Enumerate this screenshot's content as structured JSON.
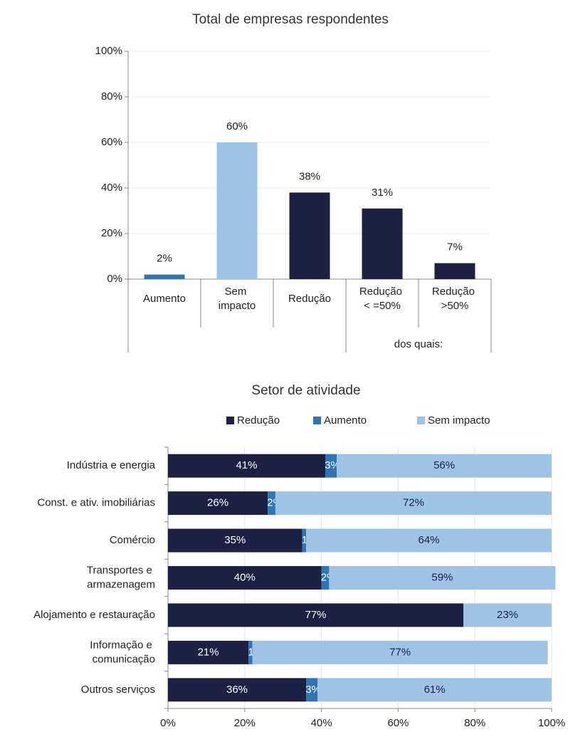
{
  "chart_data": [
    {
      "type": "bar",
      "title": "Total de empresas respondentes",
      "categories": [
        "Aumento",
        "Sem\nimpacto",
        "Redução",
        "Redução\n< =50%",
        "Redução\n>50%"
      ],
      "values": [
        2,
        60,
        38,
        31,
        7
      ],
      "value_labels": [
        "2%",
        "60%",
        "38%",
        "31%",
        "7%"
      ],
      "colors": [
        "#2e75b6",
        "#9dc3e6",
        "#1c2143",
        "#1c2143",
        "#1c2143"
      ],
      "group_label": "dos quais:",
      "ylim": [
        0,
        100
      ],
      "yticks": [
        {
          "value": 0,
          "label": "0%"
        },
        {
          "value": 20,
          "label": "20%"
        },
        {
          "value": 40,
          "label": "40%"
        },
        {
          "value": 60,
          "label": "60%"
        },
        {
          "value": 80,
          "label": "80%"
        },
        {
          "value": 100,
          "label": "100%"
        }
      ],
      "grid": true
    },
    {
      "type": "stacked-hbar",
      "title": "Setor de atividade",
      "categories": [
        "Indústria e energia",
        "Const. e ativ. imobiliárias",
        "Comércio",
        "Transportes e\narmazenagem",
        "Alojamento e restauração",
        "Informação e\ncomunicação",
        "Outros serviços"
      ],
      "series": [
        {
          "name": "Redução",
          "color": "#1c2143",
          "values": [
            41,
            26,
            35,
            40,
            77,
            21,
            36
          ],
          "value_labels": [
            "41%",
            "26%",
            "35%",
            "40%",
            "77%",
            "21%",
            "36%"
          ]
        },
        {
          "name": "Aumento",
          "color": "#2e75b6",
          "values": [
            3,
            2,
            1,
            2,
            0,
            1,
            3
          ],
          "value_labels": [
            "3%",
            "2%",
            "1%",
            "2%",
            null,
            "1%",
            "3%"
          ]
        },
        {
          "name": "Sem impacto",
          "color": "#9dc3e6",
          "values": [
            56,
            72,
            64,
            59,
            23,
            77,
            61
          ],
          "value_labels": [
            "56%",
            "72%",
            "64%",
            "59%",
            "23%",
            "77%",
            "61%"
          ]
        }
      ],
      "xlim": [
        0,
        100
      ],
      "xticks": [
        {
          "value": 0,
          "label": "0%"
        },
        {
          "value": 20,
          "label": "20%"
        },
        {
          "value": 40,
          "label": "40%"
        },
        {
          "value": 60,
          "label": "60%"
        },
        {
          "value": 80,
          "label": "80%"
        },
        {
          "value": 100,
          "label": "100%"
        }
      ],
      "grid": true
    }
  ]
}
